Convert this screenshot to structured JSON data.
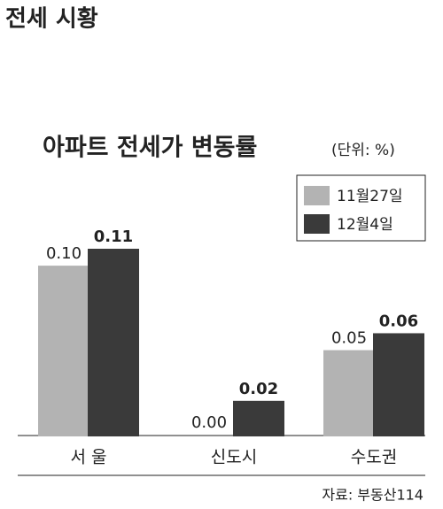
{
  "header": {
    "title": "전세 시황"
  },
  "chart_data": {
    "type": "bar",
    "title": "아파트 전세가 변동률",
    "subtitle": "(단위: %)",
    "categories": [
      "서 울",
      "신도시",
      "수도권"
    ],
    "series": [
      {
        "name": "11월27일",
        "color": "#b3b3b3",
        "values": [
          0.1,
          0.0,
          0.05
        ],
        "value_labels": [
          "0.10",
          "0.00",
          "0.05"
        ]
      },
      {
        "name": "12월4일",
        "color": "#3a3a3a",
        "values": [
          0.11,
          0.02,
          0.06
        ],
        "value_labels": [
          "0.11",
          "0.02",
          "0.06"
        ]
      }
    ],
    "source": "자료: 부동산114"
  }
}
